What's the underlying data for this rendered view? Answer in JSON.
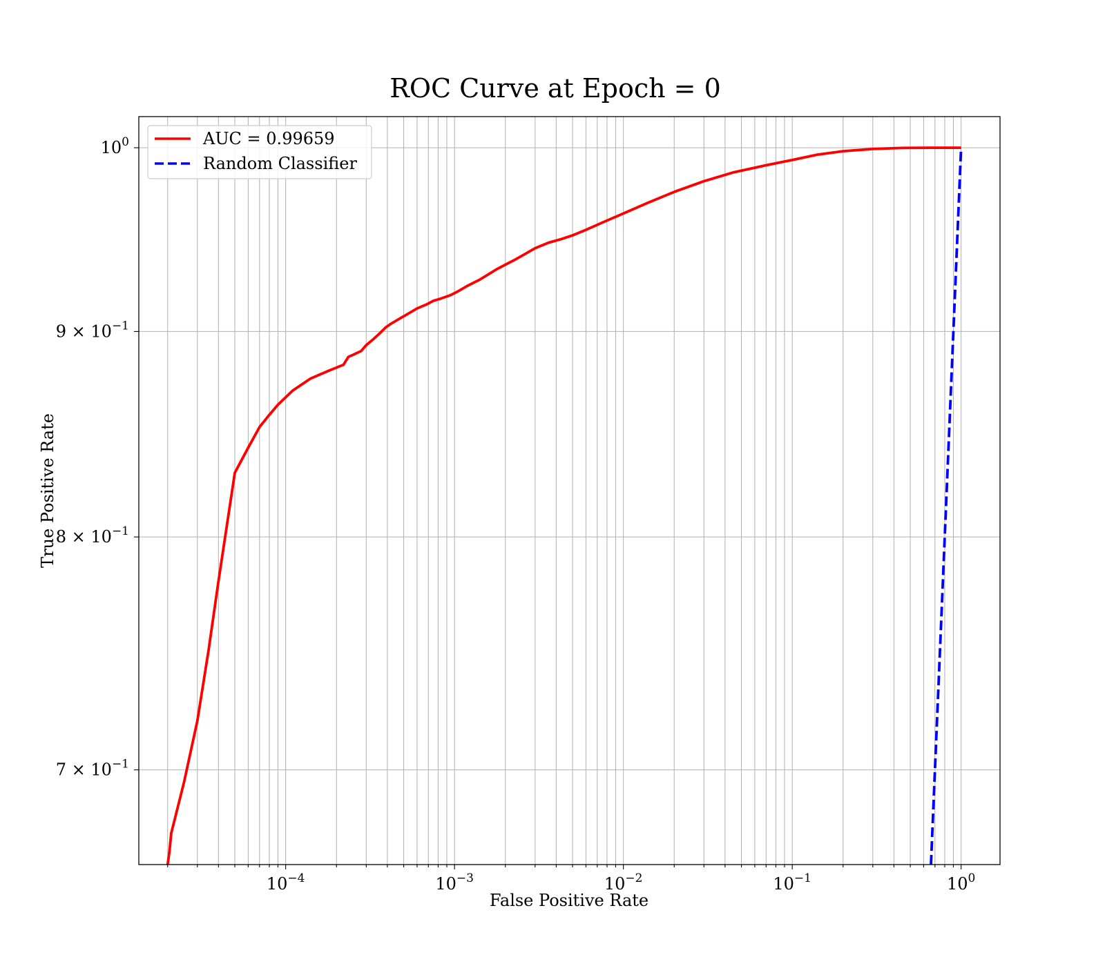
{
  "chart_data": {
    "type": "line",
    "title": "ROC Curve at Epoch = 0",
    "xlabel": "False Positive Rate",
    "ylabel": "True Positive Rate",
    "xscale": "log",
    "yscale": "log",
    "xlim": [
      1.35e-05,
      1.7
    ],
    "ylim": [
      0.663,
      1.018
    ],
    "grid": true,
    "grid_which": "both",
    "legend_position": "top-left",
    "x_ticks": [
      {
        "value": 0.0001,
        "base": "10",
        "exp": "−4"
      },
      {
        "value": 0.001,
        "base": "10",
        "exp": "−3"
      },
      {
        "value": 0.01,
        "base": "10",
        "exp": "−2"
      },
      {
        "value": 0.1,
        "base": "10",
        "exp": "−1"
      },
      {
        "value": 1,
        "base": "10",
        "exp": "0"
      }
    ],
    "y_ticks": [
      {
        "value": 1.0,
        "base": "10",
        "exp": "0",
        "mantissa": ""
      },
      {
        "value": 0.9,
        "base": "10",
        "exp": "−1",
        "mantissa": "9 × "
      },
      {
        "value": 0.8,
        "base": "10",
        "exp": "−1",
        "mantissa": "8 × "
      },
      {
        "value": 0.7,
        "base": "10",
        "exp": "−1",
        "mantissa": "7 × "
      }
    ],
    "series": [
      {
        "name": "AUC = 0.99659",
        "color": "#ff0000",
        "style": "solid",
        "x": [
          2e-05,
          2.05e-05,
          2.1e-05,
          2.5e-05,
          3e-05,
          3.5e-05,
          4e-05,
          5e-05,
          6e-05,
          7e-05,
          8e-05,
          9e-05,
          0.00011,
          0.00014,
          0.00018,
          0.00022,
          0.000235,
          0.00025,
          0.00028,
          0.0003,
          0.00033,
          0.00036,
          0.00039,
          0.00042,
          0.00048,
          0.00055,
          0.0006,
          0.00068,
          0.00075,
          0.00082,
          0.00095,
          0.00105,
          0.0012,
          0.0014,
          0.0018,
          0.0023,
          0.003,
          0.0036,
          0.0043,
          0.005,
          0.006,
          0.0075,
          0.01,
          0.014,
          0.02,
          0.03,
          0.045,
          0.07,
          0.1,
          0.14,
          0.2,
          0.3,
          0.45,
          0.65,
          1.0
        ],
        "y": [
          0.663,
          0.668,
          0.675,
          0.695,
          0.72,
          0.75,
          0.78,
          0.83,
          0.842,
          0.852,
          0.858,
          0.863,
          0.87,
          0.876,
          0.88,
          0.883,
          0.887,
          0.888,
          0.89,
          0.893,
          0.896,
          0.899,
          0.902,
          0.904,
          0.907,
          0.91,
          0.912,
          0.914,
          0.916,
          0.917,
          0.919,
          0.921,
          0.924,
          0.927,
          0.933,
          0.938,
          0.944,
          0.947,
          0.949,
          0.951,
          0.954,
          0.958,
          0.963,
          0.969,
          0.975,
          0.981,
          0.986,
          0.99,
          0.993,
          0.996,
          0.998,
          0.9993,
          0.9999,
          1.0,
          1.0
        ]
      },
      {
        "name": "Random Classifier",
        "color": "#0000ff",
        "style": "dashed",
        "x": [
          0.663,
          1.0
        ],
        "y": [
          0.663,
          1.0
        ]
      }
    ]
  }
}
